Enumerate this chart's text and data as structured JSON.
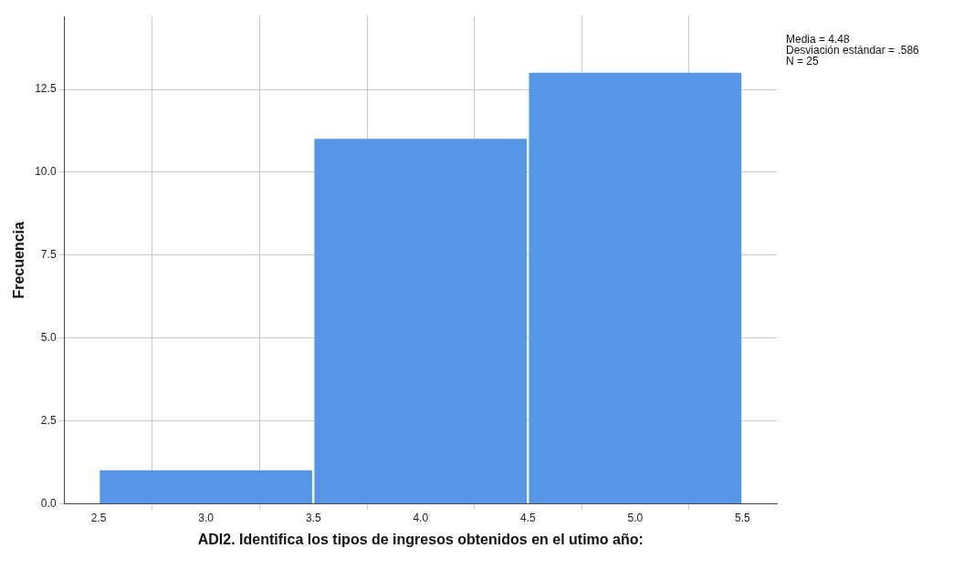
{
  "chart_data": {
    "type": "histogram",
    "xlabel": "ADI2. Identifica los tipos de ingresos obtenidos en el utimo año:",
    "ylabel": "Frecuencia",
    "bins": [
      2.5,
      3.5,
      4.5,
      5.5
    ],
    "values": [
      1,
      11,
      13
    ],
    "color": "#5596e6",
    "xlim": [
      2.34,
      5.66
    ],
    "xticks": [
      {
        "value": 2.5,
        "label": "2.5"
      },
      {
        "value": 3,
        "label": "3.0"
      },
      {
        "value": 3.5,
        "label": "3.5"
      },
      {
        "value": 4,
        "label": "4.0"
      },
      {
        "value": 4.5,
        "label": "4.5"
      },
      {
        "value": 5,
        "label": "5.0"
      },
      {
        "value": 5.5,
        "label": "5.5"
      }
    ],
    "ylim": [
      0,
      14.7
    ],
    "yticks": [
      {
        "value": 0,
        "label": "0.0"
      },
      {
        "value": 2.5,
        "label": "2.5"
      },
      {
        "value": 5,
        "label": "5.0"
      },
      {
        "value": 7.5,
        "label": "7.5"
      },
      {
        "value": 10,
        "label": "10.0"
      },
      {
        "value": 12.5,
        "label": "12.5"
      }
    ],
    "grid": true,
    "legend": false,
    "annotations": [
      "Media = 4.48",
      "Desviación estándar = .586",
      "N = 25"
    ]
  }
}
